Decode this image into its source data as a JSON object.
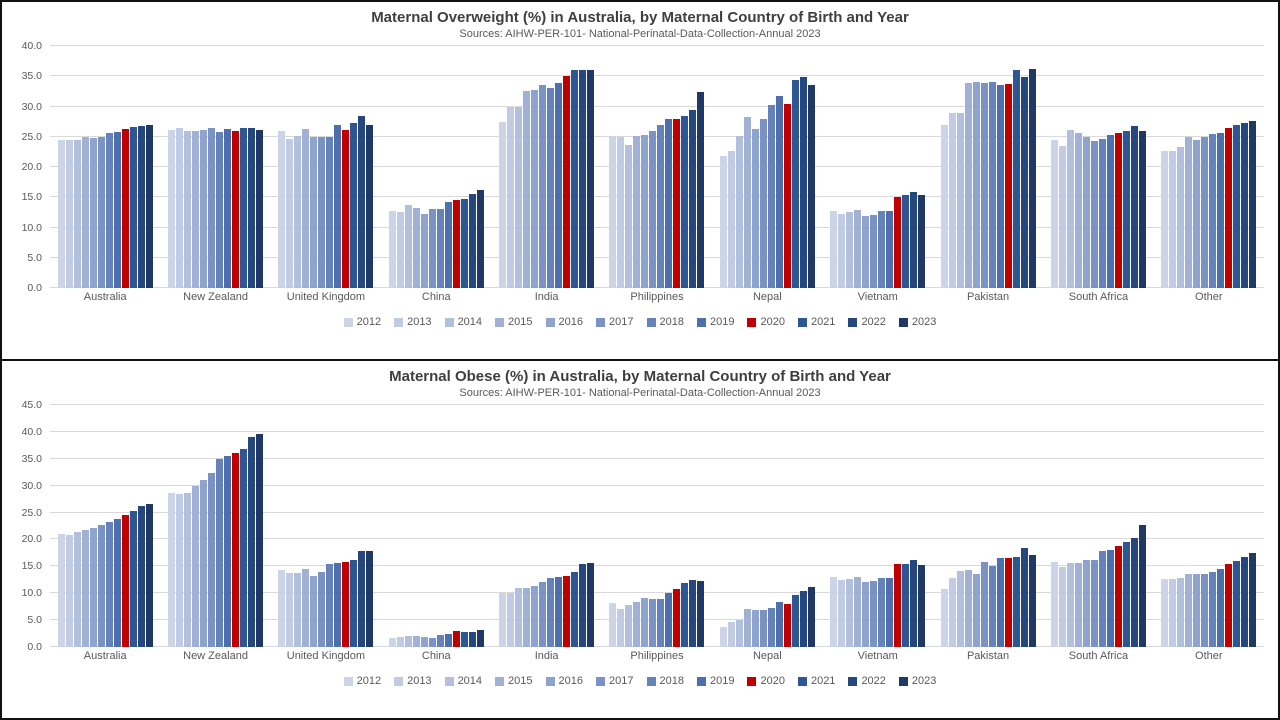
{
  "chart_data": [
    {
      "type": "bar",
      "title": "Maternal Overweight (%) in Australia, by Maternal Country of Birth and Year",
      "subtitle": "Sources: AIHW-PER-101- National-Perinatal-Data-Collection-Annual 2023",
      "ylim": [
        0,
        40
      ],
      "ytick_step": 5,
      "ytick_labels": [
        "40.0",
        "35.0",
        "30.0",
        "25.0",
        "20.0",
        "15.0",
        "10.0",
        "5.0",
        "0.0"
      ],
      "grid": true,
      "legend_position": "bottom",
      "highlight_color": "#c00000",
      "categories": [
        "Australia",
        "New Zealand",
        "United Kingdom",
        "China",
        "India",
        "Philippines",
        "Nepal",
        "Vietnam",
        "Pakistan",
        "South Africa",
        "Other"
      ],
      "series": [
        {
          "name": "2012",
          "color": "#ccd5e8",
          "values": [
            24.5,
            26.1,
            26.0,
            12.7,
            27.5,
            25.2,
            21.9,
            12.8,
            27.0,
            24.4,
            22.6
          ]
        },
        {
          "name": "2013",
          "color": "#c2cbe4",
          "values": [
            24.5,
            26.4,
            24.6,
            12.5,
            29.9,
            25.0,
            22.7,
            12.2,
            29.0,
            23.4,
            22.6
          ]
        },
        {
          "name": "2014",
          "color": "#b2c0dd",
          "values": [
            24.5,
            26.0,
            25.1,
            13.8,
            30.0,
            23.7,
            25.1,
            12.5,
            28.9,
            26.2,
            23.3
          ]
        },
        {
          "name": "2015",
          "color": "#a1b1d5",
          "values": [
            25.0,
            26.0,
            26.3,
            13.3,
            32.6,
            25.1,
            28.3,
            12.9,
            33.9,
            25.7,
            25.0
          ]
        },
        {
          "name": "2016",
          "color": "#8ea3cd",
          "values": [
            24.8,
            26.1,
            25.0,
            12.3,
            32.8,
            25.3,
            26.3,
            11.9,
            34.0,
            24.9,
            24.4
          ]
        },
        {
          "name": "2017",
          "color": "#7a93c4",
          "values": [
            24.9,
            26.4,
            25.0,
            13.0,
            33.5,
            26.0,
            28.0,
            12.1,
            33.9,
            24.3,
            25.0
          ]
        },
        {
          "name": "2018",
          "color": "#6583ba",
          "values": [
            25.6,
            25.8,
            25.0,
            13.1,
            33.0,
            27.0,
            30.3,
            12.8,
            34.0,
            24.6,
            25.4
          ]
        },
        {
          "name": "2019",
          "color": "#4d6fae",
          "values": [
            25.8,
            26.3,
            26.9,
            14.2,
            33.9,
            27.9,
            31.7,
            12.8,
            33.6,
            25.3,
            25.6
          ]
        },
        {
          "name": "2020",
          "color": "#c00000",
          "values": [
            26.3,
            26.0,
            26.2,
            14.5,
            35.0,
            27.9,
            30.4,
            15.1,
            33.8,
            25.6,
            26.5
          ]
        },
        {
          "name": "2021",
          "color": "#2e5594",
          "values": [
            26.6,
            26.4,
            27.3,
            14.7,
            36.1,
            28.4,
            34.4,
            15.4,
            36.1,
            25.9,
            27.0
          ]
        },
        {
          "name": "2022",
          "color": "#26477e",
          "values": [
            26.8,
            26.4,
            28.5,
            15.5,
            36.1,
            29.5,
            34.9,
            15.8,
            34.9,
            26.7,
            27.2
          ]
        },
        {
          "name": "2023",
          "color": "#1f3864",
          "values": [
            27.0,
            26.2,
            27.0,
            16.2,
            36.1,
            32.4,
            33.5,
            15.3,
            36.2,
            26.0,
            27.6
          ]
        }
      ]
    },
    {
      "type": "bar",
      "title": "Maternal Obese (%) in Australia, by Maternal Country of Birth and Year",
      "subtitle": "Sources: AIHW-PER-101- National-Perinatal-Data-Collection-Annual 2023",
      "ylim": [
        0,
        45
      ],
      "ytick_step": 5,
      "ytick_labels": [
        "45.0",
        "40.0",
        "35.0",
        "30.0",
        "25.0",
        "20.0",
        "15.0",
        "10.0",
        "5.0",
        "0.0"
      ],
      "grid": true,
      "legend_position": "bottom",
      "highlight_color": "#c00000",
      "categories": [
        "Australia",
        "New Zealand",
        "United Kingdom",
        "China",
        "India",
        "Philippines",
        "Nepal",
        "Vietnam",
        "Pakistan",
        "South Africa",
        "Other"
      ],
      "series": [
        {
          "name": "2012",
          "color": "#ccd5e8",
          "values": [
            21.1,
            28.6,
            14.3,
            1.6,
            10.1,
            8.1,
            3.7,
            13.1,
            10.8,
            15.9,
            12.7
          ]
        },
        {
          "name": "2013",
          "color": "#c2cbe4",
          "values": [
            20.9,
            28.4,
            13.7,
            1.8,
            10.1,
            7.1,
            4.6,
            12.4,
            12.8,
            14.8,
            12.6
          ]
        },
        {
          "name": "2014",
          "color": "#b2c0dd",
          "values": [
            21.4,
            28.7,
            13.7,
            2.0,
            11.0,
            7.8,
            5.1,
            12.6,
            14.2,
            15.6,
            12.9
          ]
        },
        {
          "name": "2015",
          "color": "#a1b1d5",
          "values": [
            21.8,
            30.0,
            14.6,
            2.1,
            11.0,
            8.4,
            7.0,
            13.1,
            14.3,
            15.6,
            13.5
          ]
        },
        {
          "name": "2016",
          "color": "#8ea3cd",
          "values": [
            22.1,
            31.0,
            13.2,
            1.8,
            11.3,
            9.1,
            6.8,
            12.1,
            13.6,
            16.1,
            13.5
          ]
        },
        {
          "name": "2017",
          "color": "#7a93c4",
          "values": [
            22.7,
            32.3,
            14.0,
            1.6,
            12.1,
            9.0,
            6.9,
            12.2,
            15.9,
            16.2,
            13.5
          ]
        },
        {
          "name": "2018",
          "color": "#6583ba",
          "values": [
            23.2,
            35.0,
            15.5,
            2.2,
            12.8,
            9.0,
            7.3,
            12.9,
            15.1,
            17.9,
            13.9
          ]
        },
        {
          "name": "2019",
          "color": "#4d6fae",
          "values": [
            23.8,
            35.6,
            15.7,
            2.5,
            13.0,
            10.1,
            8.4,
            12.9,
            16.6,
            18.1,
            14.5
          ]
        },
        {
          "name": "2020",
          "color": "#c00000",
          "values": [
            24.5,
            36.1,
            15.8,
            3.0,
            13.2,
            10.7,
            8.0,
            15.4,
            16.6,
            18.7,
            15.5
          ]
        },
        {
          "name": "2021",
          "color": "#2e5594",
          "values": [
            25.3,
            36.8,
            16.2,
            2.7,
            14.0,
            11.9,
            9.6,
            15.5,
            16.8,
            19.5,
            16.0
          ]
        },
        {
          "name": "2022",
          "color": "#26477e",
          "values": [
            26.3,
            39.0,
            17.8,
            2.7,
            15.4,
            12.5,
            10.4,
            16.1,
            18.4,
            20.2,
            16.8
          ]
        },
        {
          "name": "2023",
          "color": "#1f3864",
          "values": [
            26.6,
            39.7,
            17.8,
            3.2,
            15.6,
            12.2,
            11.1,
            15.3,
            17.2,
            22.6,
            17.4
          ]
        }
      ]
    }
  ]
}
